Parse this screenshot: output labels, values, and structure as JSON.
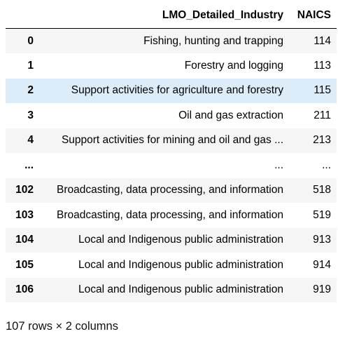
{
  "table": {
    "columns": {
      "index": "",
      "industry": "LMO_Detailed_Industry",
      "naics": "NAICS"
    },
    "rows": [
      {
        "index": "0",
        "industry": "Fishing, hunting and trapping",
        "naics": "114"
      },
      {
        "index": "1",
        "industry": "Forestry and logging",
        "naics": "113"
      },
      {
        "index": "2",
        "industry": "Support activities for agriculture and forestry",
        "naics": "115"
      },
      {
        "index": "3",
        "industry": "Oil and gas extraction",
        "naics": "211"
      },
      {
        "index": "4",
        "industry": "Support activities for mining and oil and gas ...",
        "naics": "213"
      },
      {
        "index": "...",
        "industry": "...",
        "naics": "..."
      },
      {
        "index": "102",
        "industry": "Broadcasting, data processing, and information",
        "naics": "518"
      },
      {
        "index": "103",
        "industry": "Broadcasting, data processing, and information",
        "naics": "519"
      },
      {
        "index": "104",
        "industry": "Local and Indigenous public administration",
        "naics": "913"
      },
      {
        "index": "105",
        "industry": "Local and Indigenous public administration",
        "naics": "914"
      },
      {
        "index": "106",
        "industry": "Local and Indigenous public administration",
        "naics": "919"
      }
    ],
    "highlighted_row": 2,
    "highlight_color": "#dcedf9",
    "stripe_color": "#f5f5f5"
  },
  "shape_summary": "107 rows × 2 columns"
}
